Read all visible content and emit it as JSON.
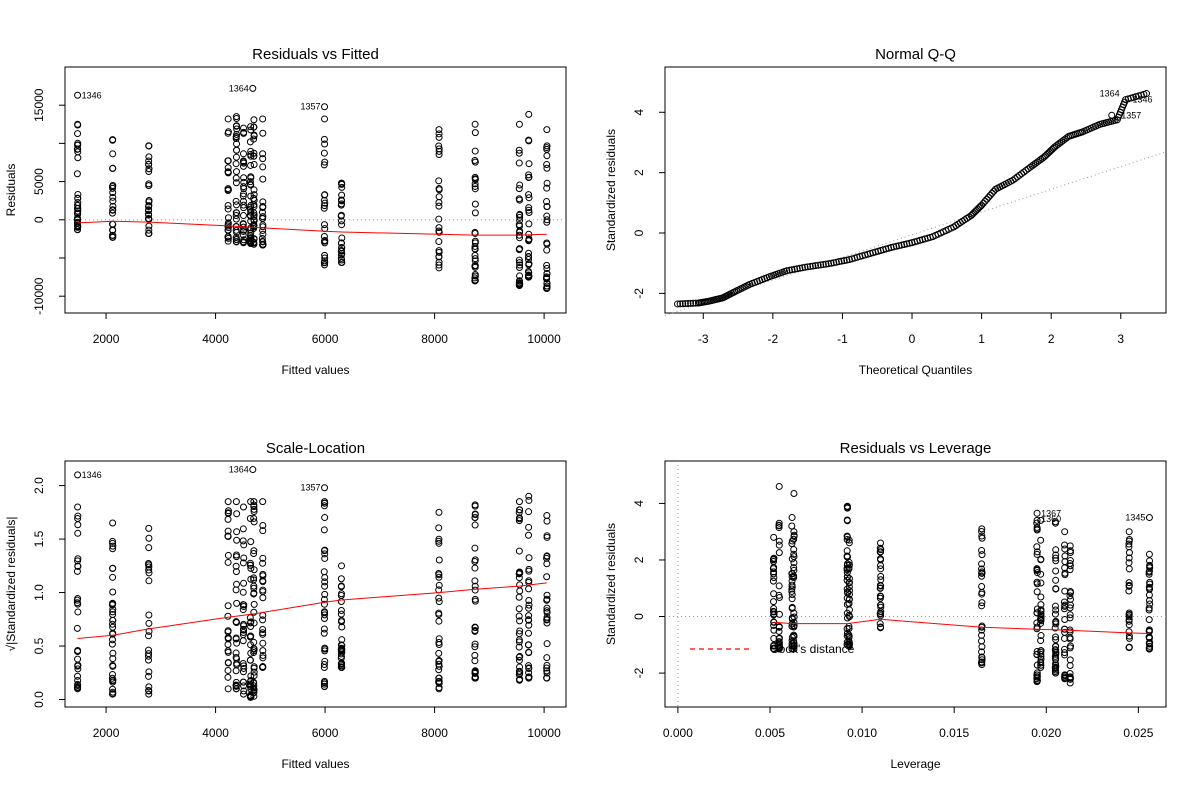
{
  "colors": {
    "ink": "#000000",
    "smoother": "#ff0000",
    "refline": "#999999"
  },
  "chart_data": [
    {
      "type": "scatter",
      "title": "Residuals vs Fitted",
      "xlabel": "Fitted values",
      "ylabel": "Residuals",
      "xlim": [
        1250,
        10400
      ],
      "ylim": [
        -12200,
        20000
      ],
      "xticks": [
        2000,
        4000,
        6000,
        8000,
        10000
      ],
      "yticks": [
        -10000,
        -5000,
        0,
        5000,
        10000,
        15000
      ],
      "ytick_labels": [
        "-10000",
        "",
        "0",
        "5000",
        "",
        "15000"
      ],
      "reference_y": 0,
      "x_groups": [
        1480,
        2120,
        2780,
        4230,
        4380,
        4510,
        4640,
        4700,
        4860,
        5990,
        6300,
        8080,
        8740,
        9550,
        9720,
        10050
      ],
      "group_ranges": [
        [
          -1300,
          12500
        ],
        [
          -2300,
          10500
        ],
        [
          -1800,
          9700
        ],
        [
          -2800,
          13200
        ],
        [
          -2900,
          13500
        ],
        [
          -3000,
          12000
        ],
        [
          -3100,
          12200
        ],
        [
          -3200,
          13100
        ],
        [
          -3300,
          13200
        ],
        [
          -5900,
          13200
        ],
        [
          -5600,
          4800
        ],
        [
          -6300,
          11800
        ],
        [
          -8000,
          12500
        ],
        [
          -8600,
          12500
        ],
        [
          -7500,
          13800
        ],
        [
          -9000,
          11800
        ]
      ],
      "points": [
        [
          1480,
          16300
        ],
        [
          4680,
          17200
        ],
        [
          5990,
          14800
        ]
      ],
      "point_labels": [
        "1346",
        "1364",
        "1357"
      ],
      "smoother": {
        "x": [
          1480,
          2120,
          2780,
          4230,
          4700,
          5990,
          6300,
          8080,
          8740,
          9550,
          10050
        ],
        "y": [
          -400,
          -200,
          -300,
          -800,
          -1000,
          -1500,
          -1600,
          -1900,
          -2000,
          -2000,
          -1900
        ]
      }
    },
    {
      "type": "scatter",
      "title": "Normal Q-Q",
      "xlabel": "Theoretical Quantiles",
      "ylabel": "Standardized residuals",
      "xlim": [
        -3.55,
        3.65
      ],
      "ylim": [
        -2.65,
        5.5
      ],
      "xticks": [
        -3,
        -2,
        -1,
        0,
        1,
        2,
        3
      ],
      "yticks": [
        -2,
        0,
        2,
        4
      ],
      "reference_line": {
        "x": [
          -3.55,
          3.65
        ],
        "y": [
          -2.73,
          2.69
        ]
      },
      "points": [
        [
          -3.37,
          -2.35
        ],
        [
          -3.07,
          -2.32
        ],
        [
          -2.9,
          -2.25
        ],
        [
          -2.72,
          -2.15
        ],
        [
          -2.55,
          -1.95
        ],
        [
          -2.33,
          -1.7
        ],
        [
          -2.05,
          -1.45
        ],
        [
          -1.8,
          -1.25
        ],
        [
          -1.5,
          -1.12
        ],
        [
          -1.2,
          -1.02
        ],
        [
          -0.9,
          -0.88
        ],
        [
          -0.6,
          -0.68
        ],
        [
          -0.3,
          -0.48
        ],
        [
          0.0,
          -0.32
        ],
        [
          0.3,
          -0.12
        ],
        [
          0.6,
          0.2
        ],
        [
          0.85,
          0.58
        ],
        [
          1.0,
          0.92
        ],
        [
          1.2,
          1.45
        ],
        [
          1.45,
          1.75
        ],
        [
          1.7,
          2.18
        ],
        [
          1.9,
          2.52
        ],
        [
          2.05,
          2.85
        ],
        [
          2.25,
          3.2
        ],
        [
          2.45,
          3.35
        ],
        [
          2.7,
          3.6
        ],
        [
          2.95,
          3.75
        ],
        [
          3.07,
          4.42
        ],
        [
          3.37,
          4.62
        ],
        [
          2.87,
          3.9
        ]
      ],
      "point_labels": [
        "1364",
        "1346",
        "1357"
      ]
    },
    {
      "type": "scatter",
      "title": "Scale-Location",
      "xlabel": "Fitted values",
      "ylabel": "√|Standardized residuals|",
      "xlim": [
        1250,
        10400
      ],
      "ylim": [
        -0.07,
        2.23
      ],
      "xticks": [
        2000,
        4000,
        6000,
        8000,
        10000
      ],
      "yticks": [
        0.0,
        0.5,
        1.0,
        1.5,
        2.0
      ],
      "ytick_labels": [
        "0.0",
        "0.5",
        "1.0",
        "1.5",
        "2.0"
      ],
      "x_groups": [
        1480,
        2120,
        2780,
        4230,
        4380,
        4510,
        4640,
        4700,
        4860,
        5990,
        6300,
        8080,
        8740,
        9550,
        9720,
        10050
      ],
      "group_ranges": [
        [
          0.1,
          1.8
        ],
        [
          0.05,
          1.65
        ],
        [
          0.05,
          1.6
        ],
        [
          0.1,
          1.85
        ],
        [
          0.1,
          1.85
        ],
        [
          0.05,
          1.8
        ],
        [
          0.02,
          1.85
        ],
        [
          0.03,
          1.85
        ],
        [
          0.3,
          1.85
        ],
        [
          0.12,
          1.85
        ],
        [
          0.3,
          1.25
        ],
        [
          0.1,
          1.75
        ],
        [
          0.2,
          1.82
        ],
        [
          0.18,
          1.85
        ],
        [
          0.2,
          1.9
        ],
        [
          0.2,
          1.72
        ]
      ],
      "points": [
        [
          1480,
          2.1
        ],
        [
          4680,
          2.15
        ],
        [
          5990,
          1.98
        ]
      ],
      "point_labels": [
        "1346",
        "1364",
        "1357"
      ],
      "smoother": {
        "x": [
          1480,
          2120,
          2780,
          4230,
          4700,
          5990,
          6300,
          8080,
          8740,
          9550,
          10050
        ],
        "y": [
          0.57,
          0.6,
          0.66,
          0.77,
          0.8,
          0.91,
          0.93,
          1.0,
          1.03,
          1.06,
          1.09
        ]
      }
    },
    {
      "type": "scatter",
      "title": "Residuals vs Leverage",
      "xlabel": "Leverage",
      "ylabel": "Standardized residuals",
      "xlim": [
        -0.0007,
        0.0265
      ],
      "ylim": [
        -3.2,
        5.5
      ],
      "xticks": [
        0.0,
        0.005,
        0.01,
        0.015,
        0.02,
        0.025
      ],
      "xtick_labels": [
        "0.000",
        "0.005",
        "0.010",
        "0.015",
        "0.020",
        "0.025"
      ],
      "yticks": [
        -2,
        0,
        2,
        4
      ],
      "reference_y": 0,
      "reference_x": 0,
      "x_groups": [
        0.0052,
        0.0055,
        0.0062,
        0.0063,
        0.0092,
        0.0093,
        0.011,
        0.0165,
        0.0195,
        0.0197,
        0.0205,
        0.021,
        0.0213,
        0.0245,
        0.0256
      ],
      "group_ranges": [
        [
          -1.15,
          2.8
        ],
        [
          -1.15,
          3.3
        ],
        [
          -1.15,
          3.5
        ],
        [
          -1.15,
          3.0
        ],
        [
          -1.0,
          3.9
        ],
        [
          -1.05,
          2.7
        ],
        [
          -0.4,
          2.6
        ],
        [
          -1.7,
          3.1
        ],
        [
          -2.3,
          3.4
        ],
        [
          -1.8,
          3.4
        ],
        [
          -2.0,
          3.3
        ],
        [
          -2.2,
          3.0
        ],
        [
          -2.35,
          2.5
        ],
        [
          -1.1,
          3.0
        ],
        [
          -1.15,
          2.2
        ]
      ],
      "points": [
        [
          0.0055,
          4.6
        ],
        [
          0.0063,
          4.35
        ],
        [
          0.0195,
          3.65
        ],
        [
          0.0205,
          3.35
        ],
        [
          0.0256,
          3.5
        ]
      ],
      "point_labels": [
        "1367",
        "1360",
        "1345"
      ],
      "smoother": {
        "x": [
          0.0052,
          0.0062,
          0.0092,
          0.011,
          0.0165,
          0.0195,
          0.021,
          0.0245,
          0.0256
        ],
        "y": [
          -0.2,
          -0.25,
          -0.25,
          -0.1,
          -0.38,
          -0.45,
          -0.48,
          -0.58,
          -0.6
        ]
      },
      "legend": {
        "label": "Cook's distance",
        "placement": "bottom-left"
      }
    }
  ]
}
